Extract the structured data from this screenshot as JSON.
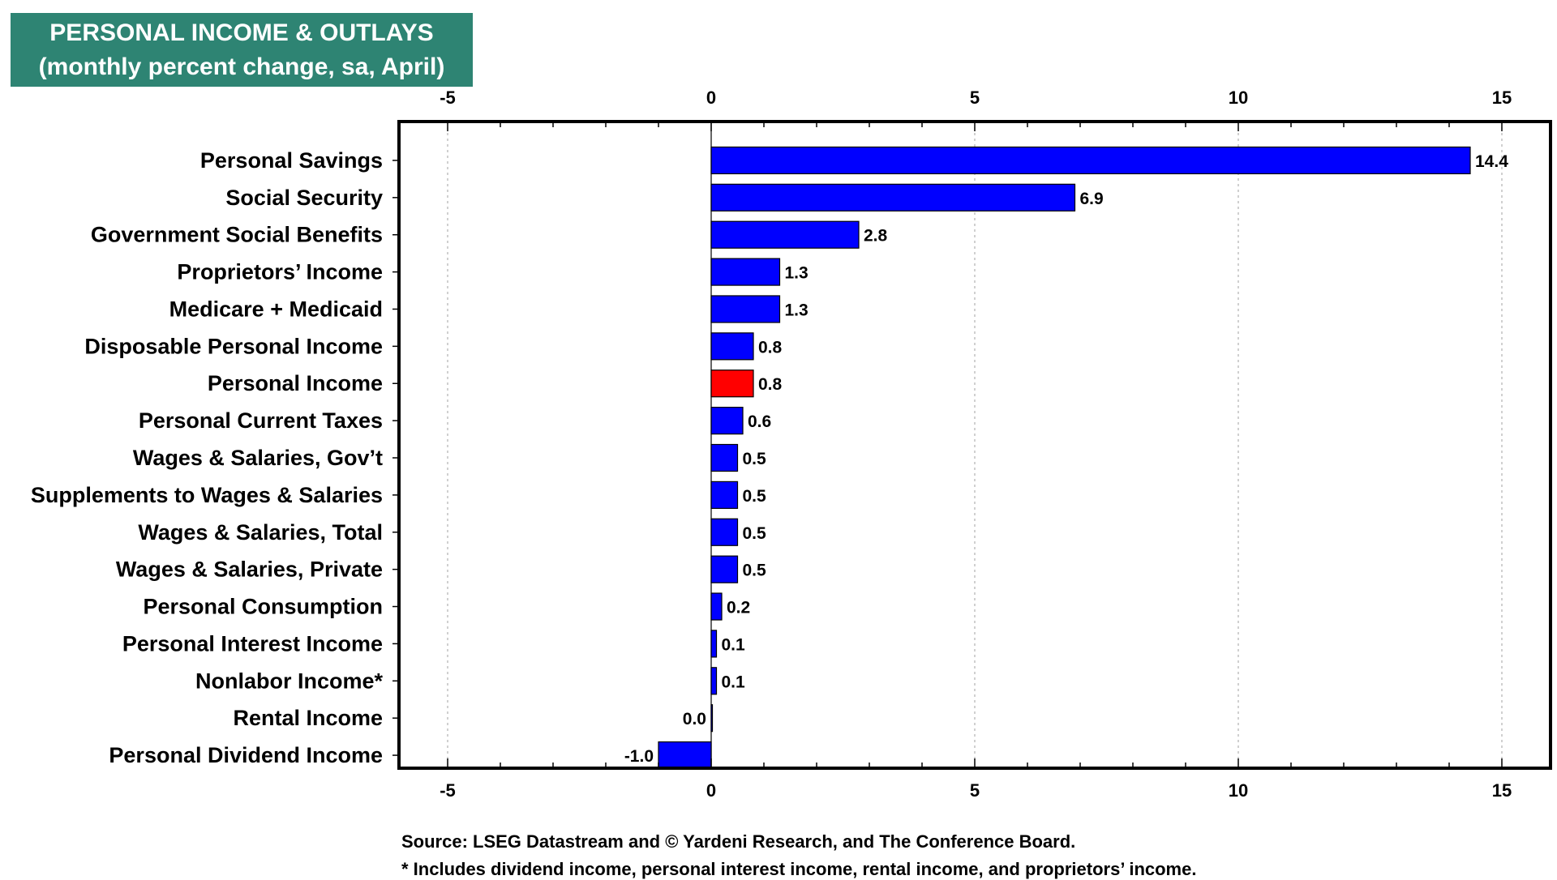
{
  "chart_data": {
    "type": "bar",
    "orientation": "horizontal",
    "title": "PERSONAL INCOME & OUTLAYS",
    "subtitle": "(monthly percent change, sa, April)",
    "categories": [
      "Personal Savings",
      "Social Security",
      "Government Social Benefits",
      "Proprietors’ Income",
      "Medicare + Medicaid",
      "Disposable Personal Income",
      "Personal Income",
      "Personal Current Taxes",
      "Wages & Salaries, Gov’t",
      "Supplements to Wages & Salaries",
      "Wages & Salaries, Total",
      "Wages & Salaries, Private",
      "Personal Consumption",
      "Personal Interest Income",
      "Nonlabor Income*",
      "Rental Income",
      "Personal Dividend Income"
    ],
    "values": [
      14.4,
      6.9,
      2.8,
      1.3,
      1.3,
      0.8,
      0.8,
      0.6,
      0.5,
      0.5,
      0.5,
      0.5,
      0.2,
      0.1,
      0.1,
      0.0,
      -1.0
    ],
    "value_labels": [
      "14.4",
      "6.9",
      "2.8",
      "1.3",
      "1.3",
      "0.8",
      "0.8",
      "0.6",
      "0.5",
      "0.5",
      "0.5",
      "0.5",
      "0.2",
      "0.1",
      "0.1",
      "0.0",
      "-1.0"
    ],
    "highlight_category": "Personal Income",
    "xlim": [
      -6,
      16
    ],
    "x_ticks": [
      -5,
      0,
      5,
      10,
      15
    ],
    "x_tick_labels": [
      "-5",
      "0",
      "5",
      "10",
      "15"
    ],
    "xlabel": "",
    "ylabel": "",
    "grid": "vertical dotted",
    "legend": "none"
  },
  "colors": {
    "bar": "#0000ff",
    "highlight_bar": "#ff0000",
    "title_background": "#2e8473",
    "title_text": "#ffffff",
    "grid": "#b0b0b0"
  },
  "footnotes": {
    "source": "Source: LSEG Datastream and © Yardeni Research, and The Conference Board.",
    "note": "* Includes dividend income, personal interest income, rental income, and proprietors’ income."
  }
}
